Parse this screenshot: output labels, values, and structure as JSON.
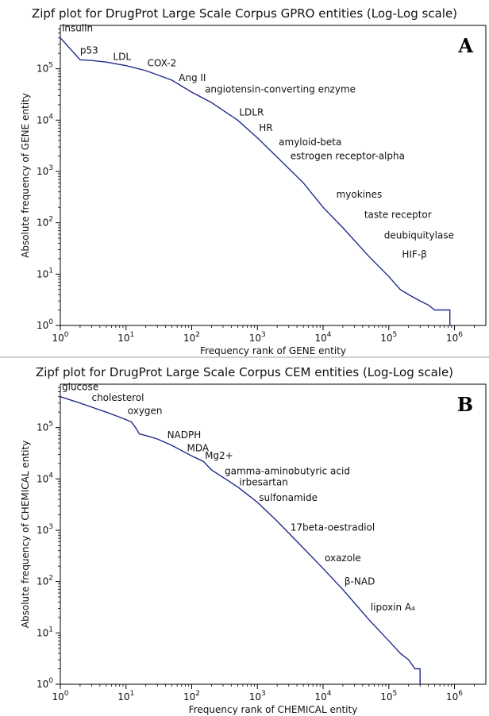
{
  "chart_data": [
    {
      "type": "line",
      "panel": "A",
      "title": "Zipf plot for DrugProt Large Scale Corpus GPRO entities (Log-Log scale)",
      "xlabel": "Frequency rank of GENE entity",
      "ylabel": "Absolute frequency of GENE entity",
      "xscale": "log",
      "yscale": "log",
      "xlim": [
        1,
        3000000
      ],
      "ylim": [
        1,
        700000
      ],
      "x_ticks": [
        1,
        10,
        100,
        1000,
        10000,
        100000,
        1000000
      ],
      "x_tick_labels": [
        "10^0",
        "10^1",
        "10^2",
        "10^3",
        "10^4",
        "10^5",
        "10^6"
      ],
      "y_ticks": [
        1,
        10,
        100,
        1000,
        10000,
        100000
      ],
      "y_tick_labels": [
        "10^0",
        "10^1",
        "10^2",
        "10^3",
        "10^4",
        "10^5"
      ],
      "series_color": "#1f2a8c",
      "x": [
        1,
        2,
        3,
        5,
        10,
        20,
        50,
        100,
        200,
        500,
        1000,
        2000,
        5000,
        10000,
        20000,
        50000,
        100000,
        150000,
        200000,
        300000,
        400000,
        500000,
        650000,
        850000,
        850000
      ],
      "y": [
        400000,
        150000,
        145000,
        135000,
        115000,
        92000,
        60000,
        35000,
        22000,
        10000,
        4500,
        1900,
        600,
        200,
        80,
        22,
        9,
        5,
        4,
        3,
        2.5,
        2,
        2,
        2,
        1
      ],
      "annotations": [
        {
          "text": "insulin",
          "x": 1,
          "y": 400000
        },
        {
          "text": "p53",
          "x": 2,
          "y": 150000
        },
        {
          "text": "LDL",
          "x": 6,
          "y": 120000
        },
        {
          "text": "COX-2",
          "x": 20,
          "y": 90000
        },
        {
          "text": "Ang II",
          "x": 60,
          "y": 50000
        },
        {
          "text": "angiotensin-converting enzyme",
          "x": 150,
          "y": 28000
        },
        {
          "text": "LDLR",
          "x": 500,
          "y": 10000
        },
        {
          "text": "HR",
          "x": 1000,
          "y": 5000
        },
        {
          "text": "amyloid-beta",
          "x": 2000,
          "y": 2600
        },
        {
          "text": "estrogen receptor-alpha",
          "x": 3000,
          "y": 1400
        },
        {
          "text": "myokines",
          "x": 15000,
          "y": 250
        },
        {
          "text": "taste receptor",
          "x": 40000,
          "y": 100
        },
        {
          "text": "deubiquitylase",
          "x": 80000,
          "y": 40
        },
        {
          "text": "HIF-β",
          "x": 150000,
          "y": 17
        },
        {
          "text": "A",
          "x": null,
          "y": null,
          "role": "panel-letter"
        }
      ]
    },
    {
      "type": "line",
      "panel": "B",
      "title": "Zipf plot for DrugProt Large Scale Corpus CEM entities (Log-Log scale)",
      "xlabel": "Frequency rank of CHEMICAL entity",
      "ylabel": "Absolute frequency of CHEMICAL entity",
      "xscale": "log",
      "yscale": "log",
      "xlim": [
        1,
        3000000
      ],
      "ylim": [
        1,
        700000
      ],
      "x_ticks": [
        1,
        10,
        100,
        1000,
        10000,
        100000,
        1000000
      ],
      "x_tick_labels": [
        "10^0",
        "10^1",
        "10^2",
        "10^3",
        "10^4",
        "10^5",
        "10^6"
      ],
      "y_ticks": [
        1,
        10,
        100,
        1000,
        10000,
        100000
      ],
      "y_tick_labels": [
        "10^0",
        "10^1",
        "10^2",
        "10^3",
        "10^4",
        "10^5"
      ],
      "series_color": "#1f2a8c",
      "x": [
        1,
        2,
        3,
        5,
        8,
        12,
        14,
        16,
        20,
        30,
        50,
        100,
        150,
        200,
        500,
        1000,
        2000,
        5000,
        10000,
        20000,
        50000,
        100000,
        150000,
        200000,
        250000,
        300000,
        300000
      ],
      "y": [
        400000,
        300000,
        250000,
        200000,
        160000,
        130000,
        100000,
        75000,
        70000,
        60000,
        45000,
        28000,
        22000,
        15000,
        7000,
        3500,
        1500,
        450,
        180,
        70,
        18,
        7,
        4,
        3,
        2,
        2,
        1
      ],
      "annotations": [
        {
          "text": "glucose",
          "x": 1,
          "y": 400000
        },
        {
          "text": "cholesterol",
          "x": 3,
          "y": 250000
        },
        {
          "text": "oxygen",
          "x": 10,
          "y": 150000
        },
        {
          "text": "NADPH",
          "x": 40,
          "y": 50000
        },
        {
          "text": "MDA",
          "x": 80,
          "y": 30000
        },
        {
          "text": "Mg2+",
          "x": 150,
          "y": 20000
        },
        {
          "text": "gamma-aminobutyric acid",
          "x": 300,
          "y": 10000
        },
        {
          "text": "irbesartan",
          "x": 500,
          "y": 6000
        },
        {
          "text": "sulfonamide",
          "x": 1000,
          "y": 3000
        },
        {
          "text": "17beta-oestradiol",
          "x": 3000,
          "y": 800
        },
        {
          "text": "oxazole",
          "x": 10000,
          "y": 200
        },
        {
          "text": "β-NAD",
          "x": 20000,
          "y": 70
        },
        {
          "text": "lipoxin A₄",
          "x": 50000,
          "y": 22
        },
        {
          "text": "B",
          "x": null,
          "y": null,
          "role": "panel-letter"
        }
      ]
    }
  ]
}
